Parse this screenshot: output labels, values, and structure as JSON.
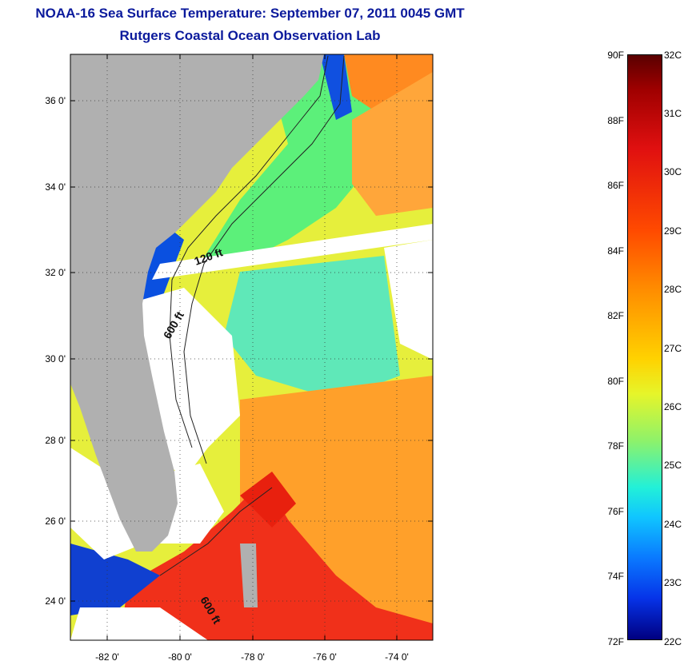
{
  "title": {
    "line1": "NOAA-16 Sea Surface Temperature:  September 07, 2011 0045 GMT",
    "line2": "Rutgers Coastal Ocean Observation Lab"
  },
  "map": {
    "lat_labels": [
      "36 0'",
      "34 0'",
      "32 0'",
      "30 0'",
      "28 0'",
      "26 0'",
      "24 0'"
    ],
    "lon_labels": [
      "-82 0'",
      "-80 0'",
      "-78 0'",
      "-76 0'",
      "-74 0'"
    ],
    "depth_labels": [
      "120 ft",
      "600 ft",
      "600 ft"
    ],
    "colors": {
      "land": "#b0b0b0",
      "cloud": "#ffffff",
      "warm": "#ff3a10",
      "mid": "#ffa020",
      "cool": "#40e8d0",
      "cold": "#0a3cd0"
    }
  },
  "colorbar": {
    "f_labels": [
      "90F",
      "88F",
      "86F",
      "84F",
      "82F",
      "80F",
      "78F",
      "76F",
      "74F",
      "72F"
    ],
    "c_labels": [
      "32C",
      "31C",
      "30C",
      "29C",
      "28C",
      "27C",
      "26C",
      "25C",
      "24C",
      "23C",
      "22C"
    ]
  }
}
